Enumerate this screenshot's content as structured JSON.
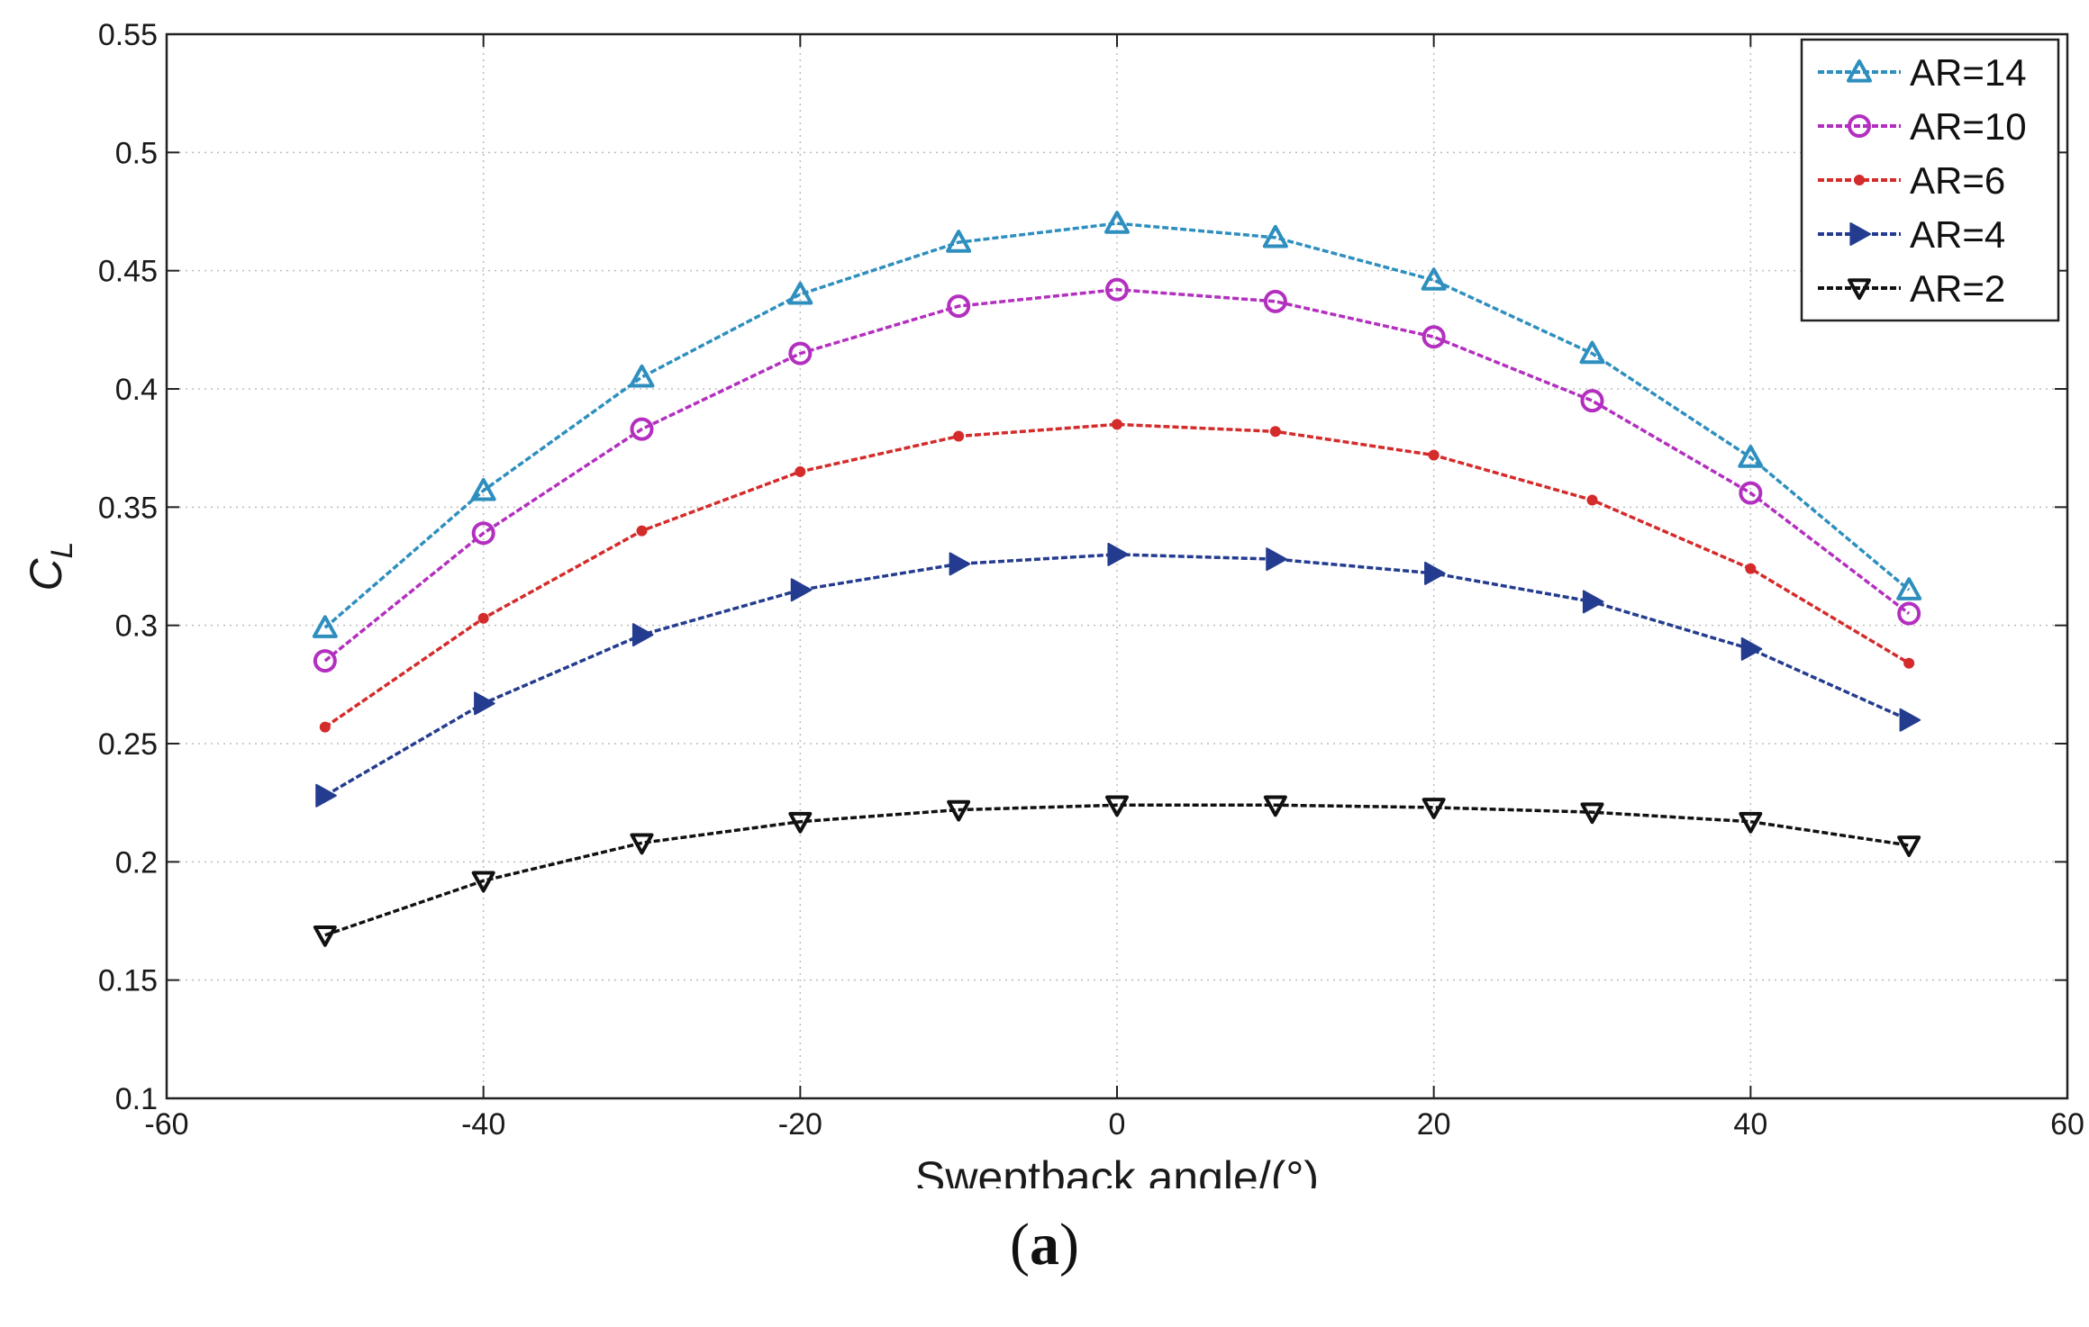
{
  "chart_data": {
    "type": "line",
    "title": "",
    "xlabel": "Sweptback angle/(°)",
    "ylabel_main": "C",
    "ylabel_sub": "L",
    "xlim": [
      -60,
      60
    ],
    "ylim": [
      0.1,
      0.55
    ],
    "xticks": [
      -60,
      -40,
      -20,
      0,
      20,
      40,
      60
    ],
    "yticks": [
      0.1,
      0.15,
      0.2,
      0.25,
      0.3,
      0.35,
      0.4,
      0.45,
      0.5,
      0.55
    ],
    "xtick_labels": [
      "-60",
      "-40",
      "-20",
      "0",
      "20",
      "40",
      "60"
    ],
    "ytick_labels": [
      "0.1",
      "0.15",
      "0.2",
      "0.25",
      "0.3",
      "0.35",
      "0.4",
      "0.45",
      "0.5",
      "0.55"
    ],
    "grid": true,
    "legend_position": "top-right",
    "x": [
      -50,
      -40,
      -30,
      -20,
      -10,
      0,
      10,
      20,
      30,
      40,
      50
    ],
    "series": [
      {
        "name": "AR=14",
        "color": "#2e8fbf",
        "marker": "triangle-up",
        "values": [
          0.299,
          0.357,
          0.405,
          0.44,
          0.462,
          0.47,
          0.464,
          0.446,
          0.415,
          0.371,
          0.315
        ]
      },
      {
        "name": "AR=10",
        "color": "#b32fbf",
        "marker": "circle",
        "values": [
          0.285,
          0.339,
          0.383,
          0.415,
          0.435,
          0.442,
          0.437,
          0.422,
          0.395,
          0.356,
          0.305
        ]
      },
      {
        "name": "AR=6",
        "color": "#d42b2b",
        "marker": "dot",
        "values": [
          0.257,
          0.303,
          0.34,
          0.365,
          0.38,
          0.385,
          0.382,
          0.372,
          0.353,
          0.324,
          0.284
        ]
      },
      {
        "name": "AR=4",
        "color": "#243c8f",
        "marker": "triangle-right",
        "values": [
          0.228,
          0.267,
          0.296,
          0.315,
          0.326,
          0.33,
          0.328,
          0.322,
          0.31,
          0.29,
          0.26
        ]
      },
      {
        "name": "AR=2",
        "color": "#111111",
        "marker": "triangle-down",
        "values": [
          0.169,
          0.192,
          0.208,
          0.217,
          0.222,
          0.224,
          0.224,
          0.223,
          0.221,
          0.217,
          0.207
        ]
      }
    ]
  },
  "caption": {
    "open": "(",
    "letter": "a",
    "close": ")"
  }
}
